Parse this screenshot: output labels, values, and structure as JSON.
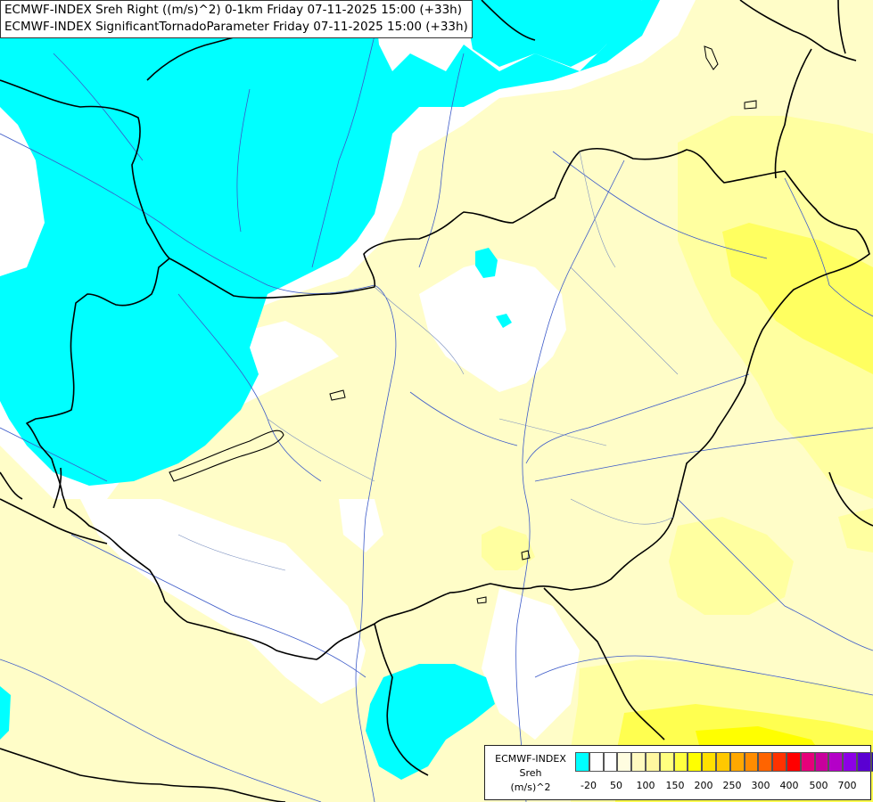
{
  "title": {
    "line1": "ECMWF-INDEX Sreh Right ((m/s)^2) 0-1km Friday 07-11-2025 15:00 (+33h)",
    "line2": "ECMWF-INDEX SignificantTornadoParameter Friday 07-11-2025 15:00 (+33h)"
  },
  "legend": {
    "line1": "ECMWF-INDEX",
    "line2": "Sreh",
    "line3": "(m/s)^2",
    "ticks": [
      "-20",
      "50",
      "100",
      "150",
      "200",
      "250",
      "300",
      "400",
      "500",
      "700"
    ],
    "colors": [
      "#00ffff",
      "#ffffff",
      "#ffffff",
      "#fffde0",
      "#fffac0",
      "#fff7a0",
      "#ffff80",
      "#ffff40",
      "#ffff00",
      "#ffe000",
      "#ffc800",
      "#ffa800",
      "#ff8c00",
      "#ff6400",
      "#ff3200",
      "#ff0000",
      "#e6007a",
      "#c8009c",
      "#b400c8",
      "#8c00e6",
      "#5a00d2",
      "#2800b4",
      "#000080"
    ]
  },
  "colors": {
    "cyan": "#00ffff",
    "pale_yellow": "#fffdc8",
    "light_yellow": "#ffffa0",
    "yellow": "#ffff50",
    "border": "#000000",
    "river": "#3c5ac8"
  }
}
